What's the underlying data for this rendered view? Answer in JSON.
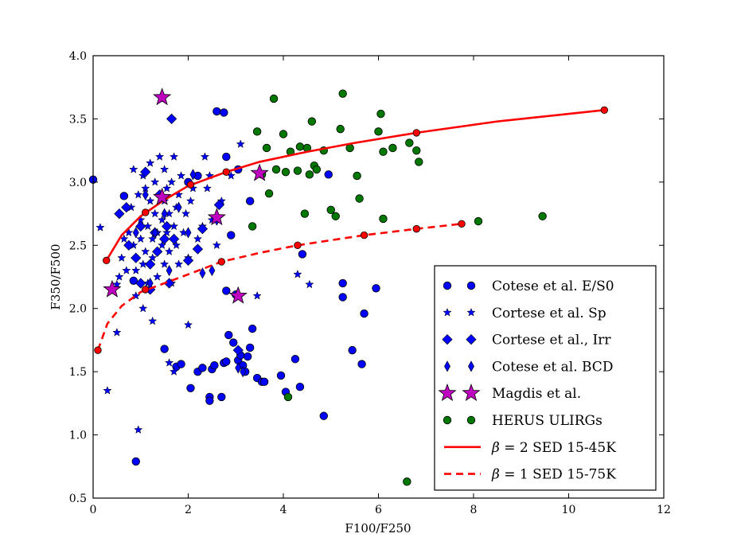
{
  "chart_data": {
    "type": "scatter",
    "xlabel": "F100/F250",
    "ylabel": "F350/F500",
    "xlim": [
      0,
      12
    ],
    "ylim": [
      0.5,
      4.0
    ],
    "xticks": [
      0,
      2,
      4,
      6,
      8,
      10,
      12
    ],
    "xtick_labels": [
      "0",
      "2",
      "4",
      "6",
      "8",
      "10",
      "12"
    ],
    "yticks": [
      0.5,
      1.0,
      1.5,
      2.0,
      2.5,
      3.0,
      3.5,
      4.0
    ],
    "ytick_labels": [
      "0.5",
      "1.0",
      "1.5",
      "2.0",
      "2.5",
      "3.0",
      "3.5",
      "4.0"
    ],
    "grid": false,
    "legend_position": "bottom-right",
    "series": [
      {
        "name": "Cotese et al. E/S0",
        "marker": "circle",
        "color": "#0000ff",
        "points": [
          [
            0.0,
            3.02
          ],
          [
            0.65,
            2.89
          ],
          [
            0.85,
            2.22
          ],
          [
            0.9,
            0.79
          ],
          [
            1.5,
            1.68
          ],
          [
            1.75,
            1.54
          ],
          [
            1.85,
            1.56
          ],
          [
            2.05,
            1.37
          ],
          [
            2.2,
            1.5
          ],
          [
            2.3,
            1.53
          ],
          [
            2.45,
            1.3
          ],
          [
            2.45,
            1.27
          ],
          [
            2.5,
            1.52
          ],
          [
            2.55,
            1.55
          ],
          [
            2.6,
            3.56
          ],
          [
            2.7,
            1.3
          ],
          [
            2.75,
            1.57
          ],
          [
            2.8,
            1.58
          ],
          [
            2.8,
            2.14
          ],
          [
            2.85,
            1.79
          ],
          [
            2.9,
            2.58
          ],
          [
            2.95,
            1.73
          ],
          [
            3.0,
            2.11
          ],
          [
            3.05,
            3.1
          ],
          [
            3.05,
            1.59
          ],
          [
            3.1,
            1.63
          ],
          [
            3.15,
            1.55
          ],
          [
            3.2,
            1.5
          ],
          [
            3.25,
            1.62
          ],
          [
            3.3,
            1.69
          ],
          [
            3.35,
            1.84
          ],
          [
            3.45,
            1.45
          ],
          [
            3.55,
            1.42
          ],
          [
            3.6,
            1.42
          ],
          [
            3.95,
            1.47
          ],
          [
            4.05,
            1.34
          ],
          [
            4.25,
            1.6
          ],
          [
            4.35,
            1.38
          ],
          [
            4.4,
            2.43
          ],
          [
            4.85,
            1.15
          ],
          [
            4.95,
            3.06
          ],
          [
            5.25,
            2.2
          ],
          [
            5.25,
            2.09
          ],
          [
            5.45,
            1.67
          ],
          [
            5.65,
            1.56
          ],
          [
            5.7,
            1.96
          ],
          [
            5.95,
            2.16
          ],
          [
            2.0,
            3.0
          ],
          [
            2.2,
            3.05
          ],
          [
            2.8,
            3.2
          ],
          [
            2.75,
            3.55
          ],
          [
            3.3,
            2.85
          ]
        ]
      },
      {
        "name": "Cortese et al. Sp",
        "marker": "star",
        "color": "#0000ff",
        "points": [
          [
            0.15,
            2.64
          ],
          [
            0.3,
            1.35
          ],
          [
            0.5,
            2.19
          ],
          [
            0.5,
            1.81
          ],
          [
            0.55,
            2.25
          ],
          [
            0.6,
            2.4
          ],
          [
            0.65,
            2.55
          ],
          [
            0.7,
            2.3
          ],
          [
            0.75,
            2.6
          ],
          [
            0.8,
            2.8
          ],
          [
            0.85,
            3.1
          ],
          [
            0.85,
            2.5
          ],
          [
            0.9,
            2.3
          ],
          [
            0.95,
            1.04
          ],
          [
            0.95,
            2.9
          ],
          [
            1.0,
            2.7
          ],
          [
            1.0,
            2.55
          ],
          [
            1.05,
            2.35
          ],
          [
            1.05,
            3.05
          ],
          [
            1.1,
            2.95
          ],
          [
            1.1,
            2.45
          ],
          [
            1.15,
            2.65
          ],
          [
            1.15,
            2.2
          ],
          [
            1.2,
            2.85
          ],
          [
            1.2,
            3.15
          ],
          [
            1.25,
            2.55
          ],
          [
            1.25,
            2.4
          ],
          [
            1.3,
            2.75
          ],
          [
            1.3,
            3.0
          ],
          [
            1.35,
            2.6
          ],
          [
            1.35,
            2.25
          ],
          [
            1.4,
            2.9
          ],
          [
            1.4,
            3.2
          ],
          [
            1.45,
            2.5
          ],
          [
            1.45,
            2.7
          ],
          [
            1.5,
            2.85
          ],
          [
            1.5,
            2.35
          ],
          [
            1.5,
            3.1
          ],
          [
            1.55,
            2.6
          ],
          [
            1.55,
            2.95
          ],
          [
            1.6,
            2.75
          ],
          [
            1.6,
            2.45
          ],
          [
            1.65,
            3.0
          ],
          [
            1.65,
            2.2
          ],
          [
            1.7,
            2.65
          ],
          [
            1.7,
            3.2
          ],
          [
            1.75,
            2.8
          ],
          [
            1.75,
            2.5
          ],
          [
            1.8,
            2.9
          ],
          [
            1.8,
            2.35
          ],
          [
            1.85,
            3.05
          ],
          [
            1.9,
            2.6
          ],
          [
            1.95,
            2.75
          ],
          [
            2.0,
            2.4
          ],
          [
            2.05,
            2.85
          ],
          [
            2.1,
            2.95
          ],
          [
            2.2,
            2.55
          ],
          [
            2.3,
            2.65
          ],
          [
            2.35,
            3.2
          ],
          [
            2.4,
            2.95
          ],
          [
            2.45,
            3.05
          ],
          [
            2.5,
            2.7
          ],
          [
            2.6,
            2.5
          ],
          [
            2.7,
            2.85
          ],
          [
            2.9,
            3.05
          ],
          [
            3.1,
            3.3
          ],
          [
            4.3,
            2.27
          ],
          [
            4.55,
            2.19
          ],
          [
            3.45,
            2.1
          ],
          [
            2.0,
            1.87
          ],
          [
            1.6,
            1.57
          ],
          [
            1.7,
            1.5
          ],
          [
            0.9,
            2.1
          ],
          [
            1.05,
            2.0
          ],
          [
            1.25,
            1.9
          ]
        ]
      },
      {
        "name": "Cortese et al., Irr",
        "marker": "diamond",
        "color": "#0000ff",
        "points": [
          [
            0.55,
            2.75
          ],
          [
            0.7,
            2.8
          ],
          [
            0.75,
            2.5
          ],
          [
            0.9,
            2.4
          ],
          [
            1.0,
            2.2
          ],
          [
            1.0,
            2.65
          ],
          [
            1.1,
            3.08
          ],
          [
            1.2,
            2.35
          ],
          [
            1.3,
            2.6
          ],
          [
            1.35,
            2.45
          ],
          [
            1.5,
            2.55
          ],
          [
            1.55,
            2.65
          ],
          [
            1.6,
            2.2
          ],
          [
            1.65,
            3.5
          ],
          [
            1.7,
            2.55
          ],
          [
            2.0,
            2.38
          ],
          [
            2.2,
            2.47
          ],
          [
            2.3,
            2.63
          ],
          [
            2.65,
            2.82
          ],
          [
            3.05,
            1.67
          ],
          [
            1.2,
            2.15
          ],
          [
            1.4,
            2.9
          ]
        ]
      },
      {
        "name": "Cotese et al. BCD",
        "marker": "thin-diamond",
        "color": "#0000ff",
        "points": [
          [
            0.9,
            2.6
          ],
          [
            1.1,
            2.9
          ],
          [
            1.2,
            2.2
          ],
          [
            1.3,
            2.6
          ],
          [
            1.5,
            2.75
          ],
          [
            1.6,
            2.3
          ],
          [
            1.8,
            2.8
          ],
          [
            2.0,
            2.6
          ],
          [
            2.1,
            3.06
          ],
          [
            2.3,
            2.28
          ],
          [
            2.5,
            2.3
          ],
          [
            2.6,
            2.7
          ],
          [
            3.05,
            1.53
          ],
          [
            3.15,
            1.5
          ]
        ]
      },
      {
        "name": "Magdis et al.",
        "marker": "big-star",
        "color": "#c000c0",
        "points": [
          [
            0.4,
            2.15
          ],
          [
            1.45,
            3.67
          ],
          [
            1.45,
            2.88
          ],
          [
            2.6,
            2.72
          ],
          [
            3.05,
            2.1
          ],
          [
            3.5,
            3.07
          ]
        ]
      },
      {
        "name": "HERUS ULIRGs",
        "marker": "circle",
        "color": "#007800",
        "points": [
          [
            3.35,
            2.65
          ],
          [
            3.45,
            3.4
          ],
          [
            3.55,
            3.06
          ],
          [
            3.65,
            3.27
          ],
          [
            3.7,
            2.91
          ],
          [
            3.8,
            3.66
          ],
          [
            3.85,
            3.1
          ],
          [
            4.0,
            3.38
          ],
          [
            4.05,
            3.08
          ],
          [
            4.1,
            1.3
          ],
          [
            4.15,
            3.24
          ],
          [
            4.3,
            3.09
          ],
          [
            4.35,
            3.28
          ],
          [
            4.45,
            2.75
          ],
          [
            4.5,
            3.27
          ],
          [
            4.55,
            3.06
          ],
          [
            4.6,
            3.48
          ],
          [
            4.65,
            3.13
          ],
          [
            4.7,
            3.1
          ],
          [
            4.85,
            3.25
          ],
          [
            5.0,
            2.78
          ],
          [
            5.1,
            2.73
          ],
          [
            5.2,
            3.42
          ],
          [
            5.25,
            3.7
          ],
          [
            5.4,
            3.27
          ],
          [
            5.55,
            3.05
          ],
          [
            5.6,
            2.87
          ],
          [
            6.0,
            3.4
          ],
          [
            6.05,
            3.54
          ],
          [
            6.1,
            3.24
          ],
          [
            6.1,
            2.71
          ],
          [
            6.3,
            3.27
          ],
          [
            6.6,
            0.63
          ],
          [
            6.65,
            3.31
          ],
          [
            6.8,
            3.25
          ],
          [
            6.85,
            3.16
          ],
          [
            8.1,
            2.69
          ],
          [
            9.45,
            2.73
          ]
        ]
      },
      {
        "name": "β = 2 SED 15-45K",
        "legend_label_plain": "= 2 SED 15-45K",
        "symbol": "β",
        "marker": "line",
        "style": "solid",
        "color": "#ff0000",
        "points": [
          [
            0.28,
            2.38
          ],
          [
            0.6,
            2.58
          ],
          [
            1.0,
            2.73
          ],
          [
            1.5,
            2.86
          ],
          [
            2.0,
            2.97
          ],
          [
            2.8,
            3.08
          ],
          [
            3.5,
            3.16
          ],
          [
            4.5,
            3.24
          ],
          [
            5.5,
            3.31
          ],
          [
            6.8,
            3.39
          ],
          [
            8.5,
            3.48
          ],
          [
            10.75,
            3.57
          ]
        ],
        "markers": [
          [
            0.28,
            2.38
          ],
          [
            1.1,
            2.76
          ],
          [
            2.05,
            2.98
          ],
          [
            2.8,
            3.08
          ],
          [
            6.8,
            3.39
          ],
          [
            10.75,
            3.57
          ]
        ]
      },
      {
        "name": "β = 1 SED 15-75K",
        "legend_label_plain": "= 1 SED 15-75K",
        "symbol": "β",
        "marker": "line",
        "style": "dashed",
        "color": "#ff0000",
        "points": [
          [
            0.1,
            1.67
          ],
          [
            0.3,
            1.88
          ],
          [
            0.6,
            2.02
          ],
          [
            1.0,
            2.13
          ],
          [
            1.5,
            2.2
          ],
          [
            2.0,
            2.27
          ],
          [
            2.7,
            2.37
          ],
          [
            3.5,
            2.44
          ],
          [
            4.3,
            2.5
          ],
          [
            5.0,
            2.54
          ],
          [
            5.7,
            2.58
          ],
          [
            6.8,
            2.63
          ],
          [
            7.75,
            2.67
          ]
        ],
        "markers": [
          [
            0.1,
            1.67
          ],
          [
            1.1,
            2.15
          ],
          [
            2.7,
            2.37
          ],
          [
            4.3,
            2.5
          ],
          [
            5.7,
            2.58
          ],
          [
            6.8,
            2.63
          ],
          [
            7.75,
            2.67
          ]
        ]
      }
    ]
  }
}
